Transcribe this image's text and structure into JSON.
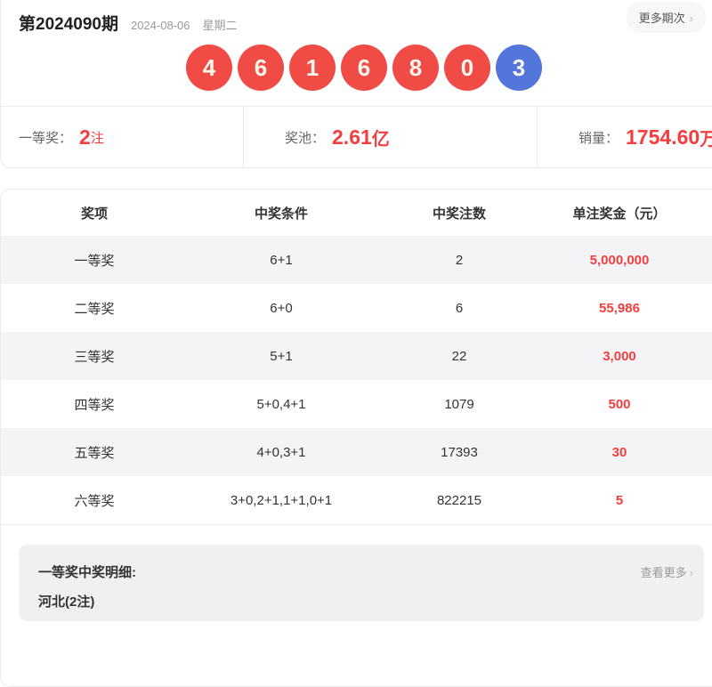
{
  "header": {
    "issue": "第2024090期",
    "date": "2024-08-06",
    "weekday": "星期二",
    "more_button": "更多期次",
    "more_chevron": "›"
  },
  "balls": {
    "values": [
      "4",
      "6",
      "1",
      "6",
      "8",
      "0",
      "3"
    ],
    "types": [
      "red",
      "red",
      "red",
      "red",
      "red",
      "red",
      "blue"
    ],
    "red_color": "#f04b44",
    "blue_color": "#5276db"
  },
  "stats": {
    "first_prize_label": "一等奖：",
    "first_prize_value": "2",
    "first_prize_unit": "注",
    "pool_label": "奖池：",
    "pool_value": "2.61",
    "pool_unit": "亿",
    "sales_label": "销量：",
    "sales_value": "1754.60",
    "sales_unit": "万"
  },
  "table": {
    "headers": [
      "奖项",
      "中奖条件",
      "中奖注数",
      "单注奖金（元）"
    ],
    "rows": [
      {
        "name": "一等奖",
        "condition": "6+1",
        "count": "2",
        "prize": "5,000,000"
      },
      {
        "name": "二等奖",
        "condition": "6+0",
        "count": "6",
        "prize": "55,986"
      },
      {
        "name": "三等奖",
        "condition": "5+1",
        "count": "22",
        "prize": "3,000"
      },
      {
        "name": "四等奖",
        "condition": "5+0,4+1",
        "count": "1079",
        "prize": "500"
      },
      {
        "name": "五等奖",
        "condition": "4+0,3+1",
        "count": "17393",
        "prize": "30"
      },
      {
        "name": "六等奖",
        "condition": "3+0,2+1,1+1,0+1",
        "count": "822215",
        "prize": "5"
      }
    ]
  },
  "footer": {
    "detail_label": "一等奖中奖明细:",
    "see_more": "查看更多",
    "see_more_chevron": "›",
    "winner": "河北(2注)"
  },
  "colors": {
    "accent_red": "#f43e3e",
    "border": "#ebebeb",
    "row_stripe": "#f4f4f7",
    "detail_box_bg": "#f0f0f0"
  }
}
